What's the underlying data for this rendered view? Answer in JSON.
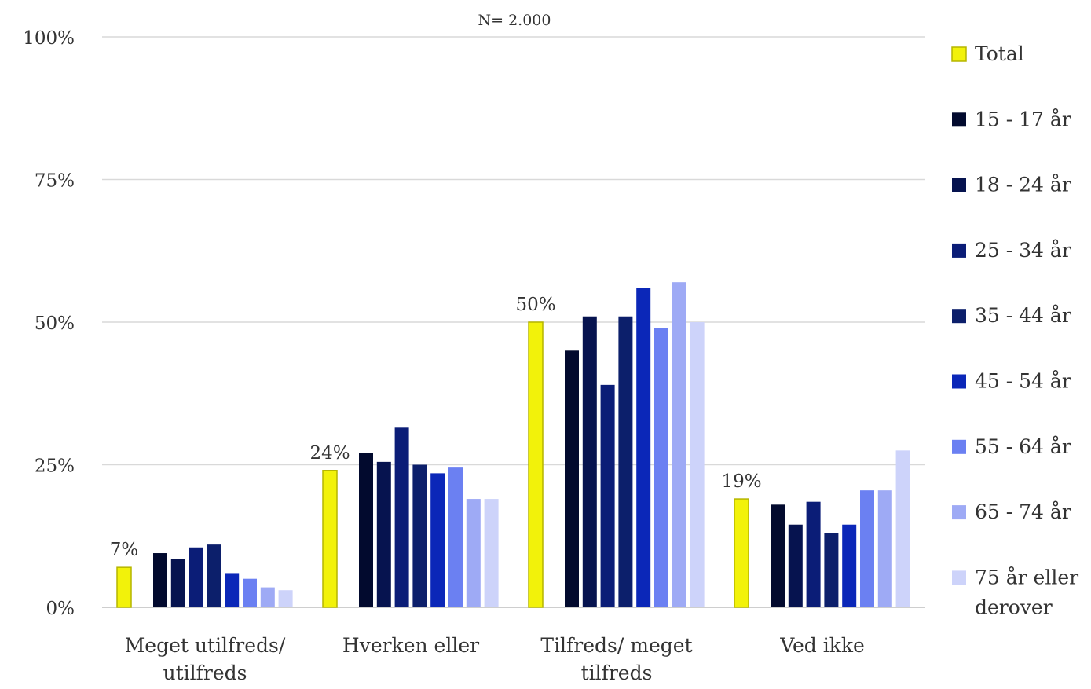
{
  "chart_data": {
    "type": "bar",
    "subtitle": "N= 2.000",
    "categories": [
      [
        "Meget utilfreds/",
        "utilfreds"
      ],
      [
        "Hverken eller"
      ],
      [
        "Tilfreds/ meget",
        "tilfreds"
      ],
      [
        "Ved ikke"
      ]
    ],
    "ylim": [
      0,
      100
    ],
    "yticks": [
      0,
      25,
      50,
      75,
      100
    ],
    "ytick_labels": [
      "0%",
      "25%",
      "50%",
      "75%",
      "100%"
    ],
    "grid": true,
    "legend_position": "right",
    "series": [
      {
        "name": "Total",
        "color": "#f2f20a",
        "border": "#b5b500",
        "values": [
          7,
          24,
          50,
          19
        ],
        "labels": [
          "7%",
          "24%",
          "50%",
          "19%"
        ]
      },
      {
        "name": "15 - 17 år",
        "color": "#020a2e",
        "values": [
          9.5,
          27,
          45,
          18
        ]
      },
      {
        "name": "18 - 24 år",
        "color": "#06134f",
        "values": [
          8.5,
          25.5,
          51,
          14.5
        ]
      },
      {
        "name": "25 - 34 år",
        "color": "#0b1d77",
        "values": [
          10.5,
          31.5,
          39,
          18.5
        ]
      },
      {
        "name": "35 - 44 år",
        "color": "#0c1f6b",
        "values": [
          11,
          25,
          51,
          13
        ]
      },
      {
        "name": "45 - 54 år",
        "color": "#0b27b8",
        "values": [
          6,
          23.5,
          56,
          14.5
        ]
      },
      {
        "name": "55 - 64 år",
        "color": "#6b80f2",
        "values": [
          5,
          24.5,
          49,
          20.5
        ]
      },
      {
        "name": "65 - 74 år",
        "color": "#9eaaf5",
        "values": [
          3.5,
          19,
          57,
          20.5
        ]
      },
      {
        "name": "75 år eller derover",
        "legend_lines": [
          "75 år eller",
          "derover"
        ],
        "color": "#cdd3fa",
        "values": [
          3,
          19,
          50,
          27.5
        ]
      }
    ]
  }
}
